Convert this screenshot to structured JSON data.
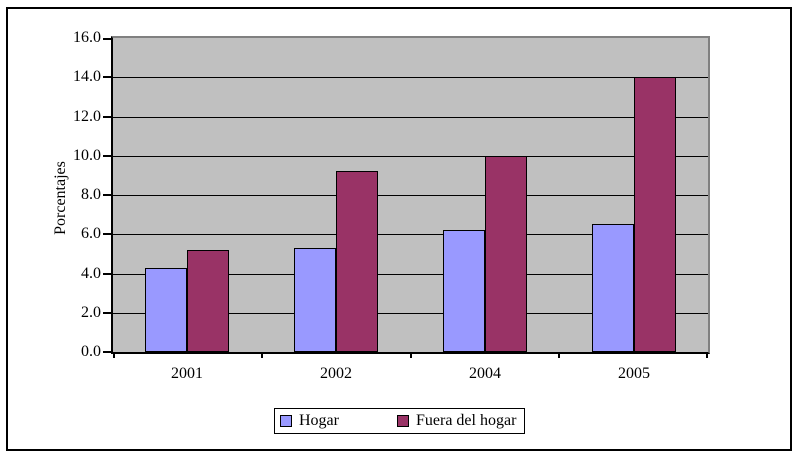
{
  "chart_data": {
    "type": "bar",
    "categories": [
      "2001",
      "2002",
      "2004",
      "2005"
    ],
    "series": [
      {
        "name": "Hogar",
        "color": "#9999FF",
        "values": [
          4.3,
          5.3,
          6.2,
          6.5
        ]
      },
      {
        "name": "Fuera del hogar",
        "color": "#993366",
        "values": [
          5.2,
          9.2,
          10.0,
          14.0
        ]
      }
    ],
    "title": "",
    "xlabel": "",
    "ylabel": "Porcentajes",
    "ylim": [
      0,
      16
    ],
    "ytick_step": 2,
    "ytick_labels": [
      "16.0",
      "14.0",
      "12.0",
      "10.0",
      "8.0",
      "6.0",
      "4.0",
      "2.0",
      "0.0"
    ],
    "grid": true,
    "legend_position": "bottom",
    "plot_background": "#C0C0C0",
    "gridline_color": "#000000",
    "outer_border_color": "#000000"
  }
}
